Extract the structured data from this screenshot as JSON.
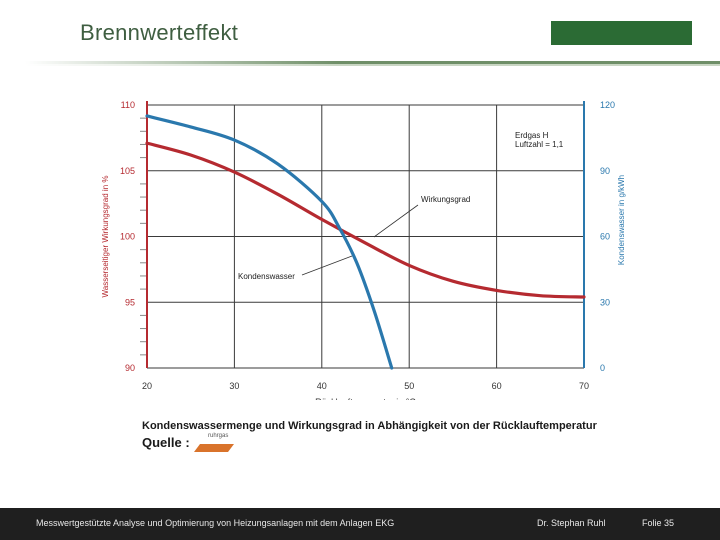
{
  "slide": {
    "title": "Brennwerteffekt",
    "caption": "Kondenswassermenge und Wirkungsgrad in Abhängigkeit von der Rücklauftemperatur",
    "source_label": "Quelle :",
    "source_logo_text": "ruhrgas"
  },
  "footer": {
    "left": "Messwertgestützte Analyse und Optimierung von Heizungsanlagen  mit dem Anlagen EKG",
    "author": "Dr. Stephan Ruhl",
    "slide_no": "Folie 35"
  },
  "colors": {
    "title": "#3f5e41",
    "logo_green": "#2b6b34",
    "efficiency_red": "#b52a30",
    "condensate_blue": "#2a78ad",
    "grid": "#3a3a3a"
  },
  "chart_data": {
    "type": "line",
    "xlabel": "Rücklauftemperatur in °C",
    "ylabel": "Wasserseitiger Wirkungsgrad in %",
    "y2label": "Kondenswasser in g/kWh",
    "xlim": [
      20,
      70
    ],
    "ylim": [
      90,
      110
    ],
    "y2lim": [
      0,
      120
    ],
    "x_ticks": [
      20,
      30,
      40,
      50,
      60,
      70
    ],
    "y_ticks": [
      90,
      95,
      100,
      105,
      110
    ],
    "y2_ticks": [
      0,
      30,
      60,
      90,
      120
    ],
    "grid": true,
    "annotations": {
      "gas": "Erdgas H",
      "air_ratio": "Luftzahl = 1,1",
      "efficiency": "Wirkungsgrad",
      "condensate": "Kondenswasser"
    },
    "series": [
      {
        "name": "Wirkungsgrad",
        "axis": "left",
        "x": [
          20,
          25,
          30,
          35,
          40,
          45,
          50,
          55,
          60,
          65,
          70
        ],
        "values": [
          107.1,
          106.2,
          104.9,
          103.2,
          101.3,
          99.5,
          97.8,
          96.6,
          95.9,
          95.5,
          95.4
        ]
      },
      {
        "name": "Kondenswasser",
        "axis": "right",
        "x": [
          20,
          25,
          30,
          35,
          40,
          42,
          44,
          46,
          48
        ],
        "values": [
          115,
          110,
          104,
          93,
          76,
          64,
          48,
          26,
          0
        ]
      }
    ]
  }
}
